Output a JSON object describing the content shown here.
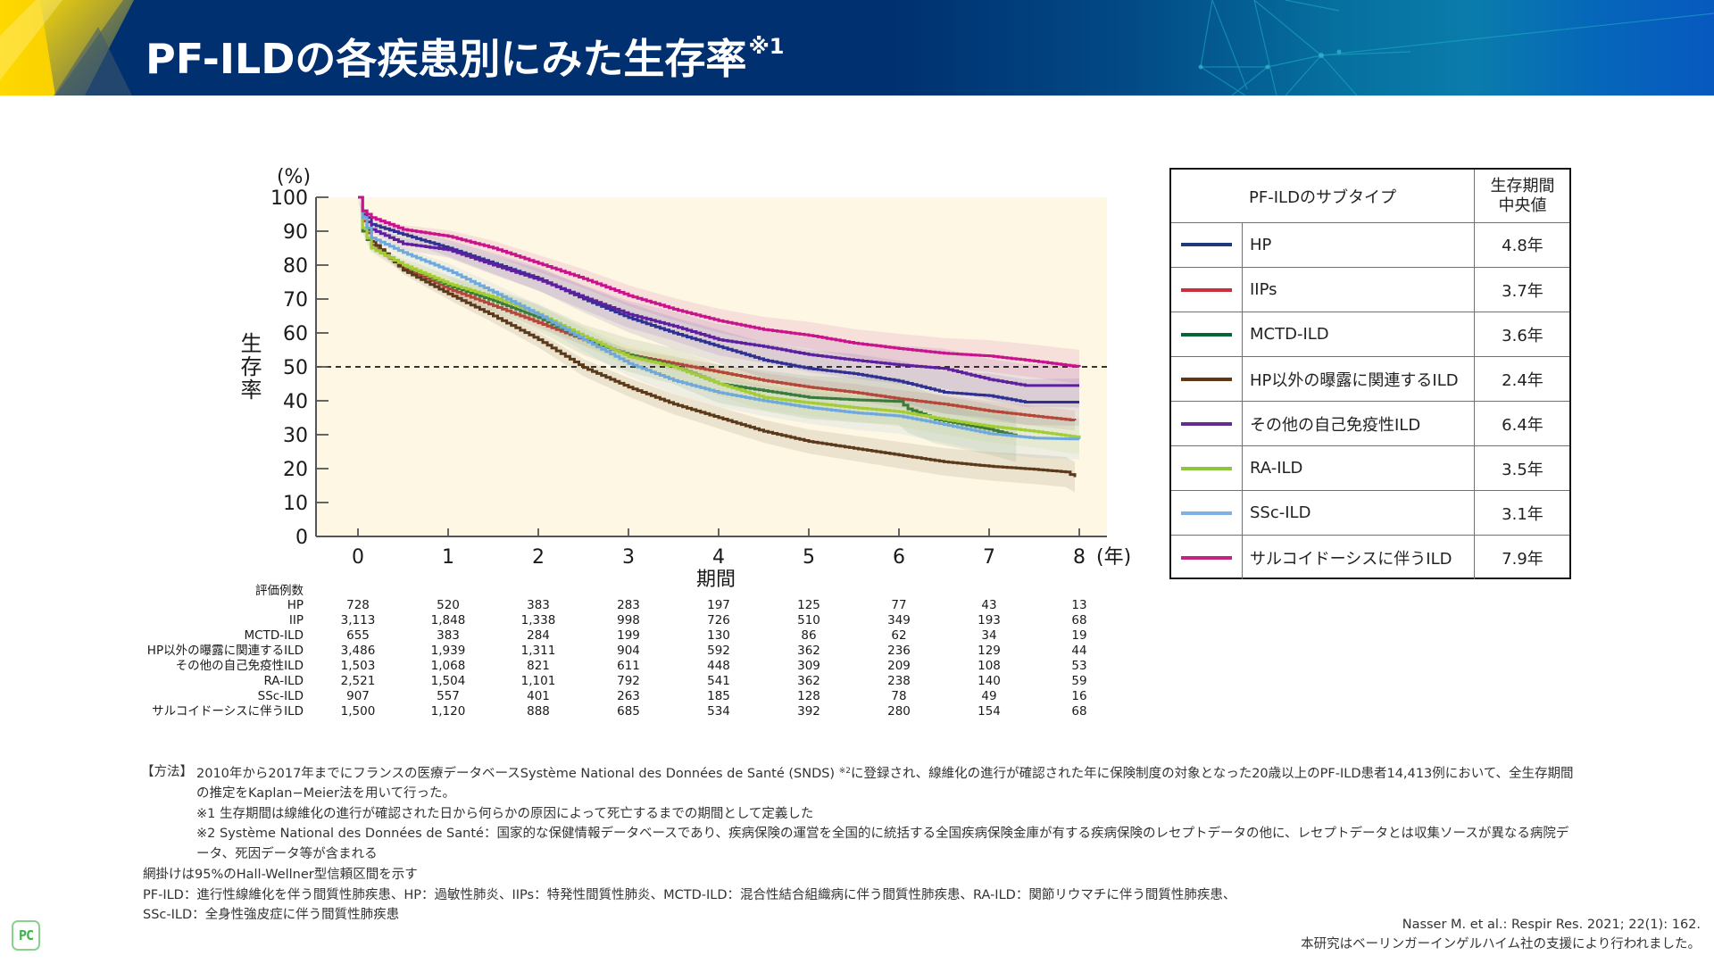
{
  "header": {
    "title": "PF-ILDの各疾患別にみた生存率",
    "title_note": "※1",
    "colors": {
      "bar": "#00306f",
      "accent_yellow": "#f5d000",
      "accent_teal": "#0a7cab"
    }
  },
  "chart_data": {
    "type": "line",
    "subtype": "kaplan-meier",
    "title": "",
    "ylabel": "生存率",
    "yunit": "(%)",
    "xlabel": "期間",
    "xunit": "(年)",
    "xlim": [
      0,
      8
    ],
    "ylim": [
      0,
      100
    ],
    "x_ticks": [
      0,
      1,
      2,
      3,
      4,
      5,
      6,
      7,
      8
    ],
    "y_ticks": [
      0,
      10,
      20,
      30,
      40,
      50,
      60,
      70,
      80,
      90,
      100
    ],
    "grid": false,
    "legend": "table-right",
    "plot_background": "#fdf7e4",
    "reference_line": {
      "y": 50,
      "style": "dashed",
      "color": "#1a1a1a"
    },
    "confidence_band": "95% Hall-Wellner",
    "series": [
      {
        "name": "HP",
        "line_color": "#2e3192",
        "legend_color": "#1d3a7a",
        "ci_halfwidth_at_8y": 7,
        "points": [
          [
            0,
            100
          ],
          [
            0.05,
            96
          ],
          [
            0.15,
            92
          ],
          [
            0.5,
            89
          ],
          [
            1,
            85
          ],
          [
            1.5,
            80.5
          ],
          [
            2,
            76
          ],
          [
            2.5,
            70
          ],
          [
            3,
            64.5
          ],
          [
            3.5,
            60
          ],
          [
            4,
            56
          ],
          [
            4.5,
            52
          ],
          [
            5,
            49.5
          ],
          [
            5.5,
            48
          ],
          [
            6,
            45.8
          ],
          [
            6.5,
            42.5
          ],
          [
            7,
            41.5
          ],
          [
            7.4,
            39.6
          ],
          [
            8,
            39.6
          ]
        ]
      },
      {
        "name": "IIPs",
        "line_color": "#b5473a",
        "legend_color": "#c9303c",
        "ci_halfwidth_at_8y": 3,
        "points": [
          [
            0,
            100
          ],
          [
            0.05,
            93
          ],
          [
            0.15,
            86
          ],
          [
            0.5,
            79
          ],
          [
            1,
            73
          ],
          [
            1.5,
            68
          ],
          [
            2,
            63
          ],
          [
            2.5,
            58
          ],
          [
            3,
            53.5
          ],
          [
            3.5,
            51
          ],
          [
            4,
            48.5
          ],
          [
            4.5,
            46
          ],
          [
            5,
            44
          ],
          [
            5.5,
            42.5
          ],
          [
            6,
            40.6
          ],
          [
            6.5,
            39
          ],
          [
            7,
            37
          ],
          [
            7.5,
            35.5
          ],
          [
            7.95,
            34.2
          ]
        ]
      },
      {
        "name": "MCTD-ILD",
        "line_color": "#3a7a3a",
        "legend_color": "#006837",
        "ci_halfwidth_at_8y": 8,
        "points": [
          [
            0,
            100
          ],
          [
            0.05,
            90
          ],
          [
            0.15,
            85
          ],
          [
            0.5,
            80
          ],
          [
            1,
            74
          ],
          [
            1.5,
            69.5
          ],
          [
            2,
            64.5
          ],
          [
            2.5,
            58
          ],
          [
            3,
            53.5
          ],
          [
            3.5,
            50.2
          ],
          [
            4,
            45
          ],
          [
            4.5,
            43
          ],
          [
            5,
            41
          ],
          [
            5.5,
            40.3
          ],
          [
            6,
            39.8
          ],
          [
            6.1,
            37.6
          ],
          [
            6.4,
            34.6
          ],
          [
            7,
            31.6
          ],
          [
            7.3,
            29.6
          ]
        ]
      },
      {
        "name": "HP以外の曝露に関連するILD",
        "line_color": "#5a3a1a",
        "legend_color": "#603813",
        "ci_halfwidth_at_8y": 4.5,
        "points": [
          [
            0,
            100
          ],
          [
            0.05,
            94
          ],
          [
            0.15,
            87
          ],
          [
            0.5,
            78.5
          ],
          [
            1,
            71.5
          ],
          [
            1.5,
            65
          ],
          [
            2,
            58
          ],
          [
            2.5,
            49.8
          ],
          [
            3,
            44
          ],
          [
            3.5,
            39
          ],
          [
            4,
            35
          ],
          [
            4.5,
            31
          ],
          [
            5,
            28
          ],
          [
            5.5,
            26
          ],
          [
            6,
            24
          ],
          [
            6.5,
            22
          ],
          [
            7,
            20.7
          ],
          [
            7.5,
            19.8
          ],
          [
            7.85,
            19
          ],
          [
            7.95,
            17.5
          ]
        ]
      },
      {
        "name": "その他の自己免疫性ILD",
        "line_color": "#5e1f9e",
        "legend_color": "#662d91",
        "ci_halfwidth_at_8y": 6.5,
        "points": [
          [
            0,
            100
          ],
          [
            0.05,
            95
          ],
          [
            0.15,
            90.5
          ],
          [
            0.5,
            86.3
          ],
          [
            1,
            84.5
          ],
          [
            1.5,
            80
          ],
          [
            2,
            75.7
          ],
          [
            2.5,
            70.5
          ],
          [
            3,
            65.5
          ],
          [
            3.5,
            62
          ],
          [
            4,
            58
          ],
          [
            4.5,
            56
          ],
          [
            5,
            53.6
          ],
          [
            5.5,
            52
          ],
          [
            6,
            50.6
          ],
          [
            6.5,
            49.5
          ],
          [
            7,
            46.3
          ],
          [
            7.4,
            44.5
          ],
          [
            8,
            44.5
          ]
        ]
      },
      {
        "name": "RA-ILD",
        "line_color": "#a3cc35",
        "legend_color": "#8cc63f",
        "ci_halfwidth_at_8y": 5,
        "points": [
          [
            0,
            100
          ],
          [
            0.05,
            91
          ],
          [
            0.15,
            85
          ],
          [
            0.5,
            80
          ],
          [
            1,
            74.5
          ],
          [
            1.5,
            70.5
          ],
          [
            2,
            65.5
          ],
          [
            2.5,
            59
          ],
          [
            3,
            53
          ],
          [
            3.5,
            50
          ],
          [
            4,
            45
          ],
          [
            4.5,
            41
          ],
          [
            5,
            39.4
          ],
          [
            5.5,
            38
          ],
          [
            6,
            36.8
          ],
          [
            6.5,
            34.5
          ],
          [
            7,
            32.5
          ],
          [
            7.5,
            31
          ],
          [
            8,
            29.2
          ]
        ]
      },
      {
        "name": "SSc-ILD",
        "line_color": "#6fa8dc",
        "legend_color": "#7fb0e6",
        "ci_halfwidth_at_8y": 6,
        "points": [
          [
            0,
            100
          ],
          [
            0.05,
            94
          ],
          [
            0.15,
            88
          ],
          [
            0.5,
            83.7
          ],
          [
            1,
            78.4
          ],
          [
            1.5,
            72
          ],
          [
            2,
            65.3
          ],
          [
            2.5,
            58
          ],
          [
            3,
            51
          ],
          [
            3.5,
            46
          ],
          [
            4,
            42.4
          ],
          [
            4.5,
            40
          ],
          [
            5,
            38
          ],
          [
            5.5,
            36.5
          ],
          [
            6,
            35.5
          ],
          [
            6.5,
            33
          ],
          [
            7,
            30.3
          ],
          [
            7.5,
            29
          ],
          [
            8,
            28.7
          ]
        ]
      },
      {
        "name": "サルコイドーシスに伴うILD",
        "line_color": "#c8148c",
        "legend_color": "#c1257f",
        "ci_halfwidth_at_8y": 5,
        "points": [
          [
            0,
            100
          ],
          [
            0.05,
            96
          ],
          [
            0.15,
            94
          ],
          [
            0.5,
            90.5
          ],
          [
            1,
            88.5
          ],
          [
            1.5,
            85
          ],
          [
            2,
            80.5
          ],
          [
            2.5,
            76
          ],
          [
            3,
            71
          ],
          [
            3.5,
            67
          ],
          [
            4,
            63.6
          ],
          [
            4.5,
            61
          ],
          [
            5,
            59.3
          ],
          [
            5.5,
            57
          ],
          [
            6,
            55.4
          ],
          [
            6.5,
            54
          ],
          [
            7,
            53.2
          ],
          [
            7.5,
            51.7
          ],
          [
            8,
            50
          ]
        ]
      }
    ],
    "at_risk": {
      "title": "評価例数",
      "rows": [
        {
          "label": "HP",
          "values": [
            "728",
            "520",
            "383",
            "283",
            "197",
            "125",
            "77",
            "43",
            "13"
          ]
        },
        {
          "label": "IIP",
          "values": [
            "3,113",
            "1,848",
            "1,338",
            "998",
            "726",
            "510",
            "349",
            "193",
            "68"
          ]
        },
        {
          "label": "MCTD-ILD",
          "values": [
            "655",
            "383",
            "284",
            "199",
            "130",
            "86",
            "62",
            "34",
            "19"
          ]
        },
        {
          "label": "HP以外の曝露に関連するILD",
          "values": [
            "3,486",
            "1,939",
            "1,311",
            "904",
            "592",
            "362",
            "236",
            "129",
            "44"
          ]
        },
        {
          "label": "その他の自己免疫性ILD",
          "values": [
            "1,503",
            "1,068",
            "821",
            "611",
            "448",
            "309",
            "209",
            "108",
            "53"
          ]
        },
        {
          "label": "RA-ILD",
          "values": [
            "2,521",
            "1,504",
            "1,101",
            "792",
            "541",
            "362",
            "238",
            "140",
            "59"
          ]
        },
        {
          "label": "SSc-ILD",
          "values": [
            "907",
            "557",
            "401",
            "263",
            "185",
            "128",
            "78",
            "49",
            "16"
          ]
        },
        {
          "label": "サルコイドーシスに伴うILD",
          "values": [
            "1,500",
            "1,120",
            "888",
            "685",
            "534",
            "392",
            "280",
            "154",
            "68"
          ]
        }
      ]
    }
  },
  "legend": {
    "header_subtype": "PF-ILDのサブタイプ",
    "header_median_line1": "生存期間",
    "header_median_line2": "中央値",
    "rows": [
      {
        "name": "HP",
        "median": "4.8年",
        "color": "#1d3a7a"
      },
      {
        "name": "IIPs",
        "median": "3.7年",
        "color": "#c9303c"
      },
      {
        "name": "MCTD-ILD",
        "median": "3.6年",
        "color": "#006837"
      },
      {
        "name": "HP以外の曝露に関連するILD",
        "median": "2.4年",
        "color": "#603813"
      },
      {
        "name": "その他の自己免疫性ILD",
        "median": "6.4年",
        "color": "#662d91"
      },
      {
        "name": "RA-ILD",
        "median": "3.5年",
        "color": "#8cc63f"
      },
      {
        "name": "SSc-ILD",
        "median": "3.1年",
        "color": "#7fb0e6"
      },
      {
        "name": "サルコイドーシスに伴うILD",
        "median": "7.9年",
        "color": "#c1257f"
      }
    ]
  },
  "methods": {
    "label": "【方法】",
    "text_before_note": "2010年から2017年までにフランスの医療データベースSystème National des Données de Santé (SNDS) ",
    "note_mark": "※2",
    "text_after_note": "に登録され、線維化の進行が確認された年に保険制度の対象となった20歳以上のPF-ILD患者14,413例において、全生存期間の推定をKaplan−Meier法を用いて行った。",
    "footnote1": "※1 生存期間は線維化の進行が確認された日から何らかの原因によって死亡するまでの期間として定義した",
    "footnote2": "※2 Système National des Données de Santé：国家的な保健情報データベースであり、疾病保険の運営を全国的に統括する全国疾病保険金庫が有する疾病保険のレセプトデータの他に、レセプトデータとは収集ソースが異なる病院データ、死因データ等が含まれる"
  },
  "notes": [
    "網掛けは95%のHall-Wellner型信頼区間を示す",
    "PF-ILD：進行性線維化を伴う間質性肺疾患、HP：過敏性肺炎、IIPs：特発性間質性肺炎、MCTD-ILD：混合性結合組織病に伴う間質性肺疾患、RA-ILD：関節リウマチに伴う間質性肺疾患、",
    "SSc-ILD：全身性強皮症に伴う間質性肺疾患"
  ],
  "citation": [
    "Nasser M. et al.: Respir Res. 2021; 22(1): 162.",
    "本研究はベーリンガーインゲルハイム社の支援により行われました。"
  ],
  "logo": {
    "text": "PC",
    "color": "#3cb44a"
  }
}
